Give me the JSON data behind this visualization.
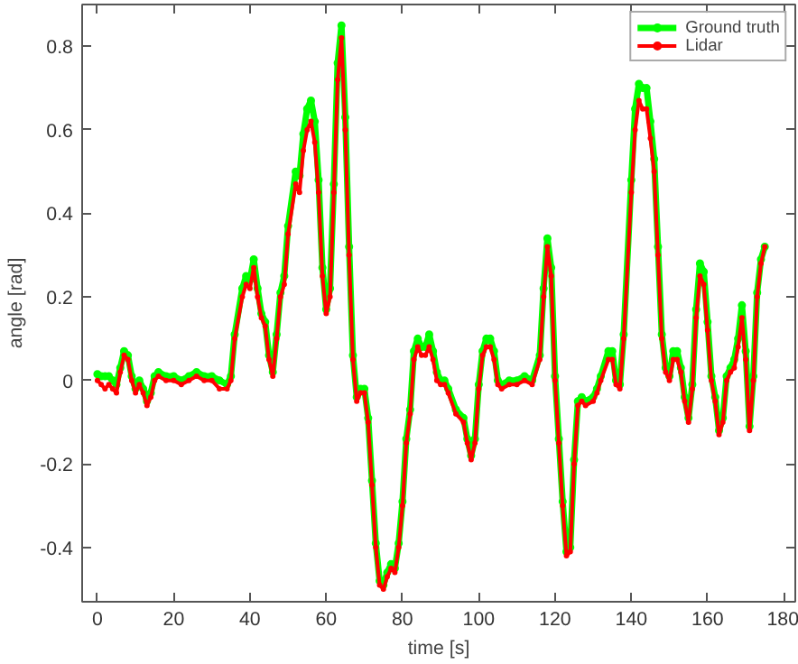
{
  "chart_data": {
    "type": "line",
    "xlabel": "time [s]",
    "ylabel": "angle [rad]",
    "xlim": [
      -4,
      183
    ],
    "ylim": [
      -0.53,
      0.9
    ],
    "xticks": [
      0,
      20,
      40,
      60,
      80,
      100,
      120,
      140,
      160,
      180
    ],
    "yticks": [
      -0.4,
      -0.2,
      0,
      0.2,
      0.4,
      0.6,
      0.8
    ],
    "grid": false,
    "legend": "top right",
    "marker": "circle",
    "line_style": "solid",
    "x": [
      0,
      1,
      2,
      3,
      4,
      5,
      6,
      7,
      8,
      9,
      10,
      11,
      12,
      13,
      14,
      15,
      16,
      18,
      20,
      22,
      24,
      26,
      28,
      30,
      32,
      34,
      35,
      36,
      38,
      39,
      40,
      41,
      42,
      43,
      44,
      45,
      46,
      47,
      48,
      49,
      50,
      52,
      53,
      54,
      55,
      56,
      57,
      58,
      59,
      60,
      61,
      62,
      63,
      64,
      65,
      66,
      67,
      68,
      69,
      70,
      71,
      72,
      73,
      74,
      75,
      76,
      77,
      78,
      79,
      80,
      81,
      82,
      83,
      84,
      85,
      86,
      87,
      88,
      89,
      90,
      91,
      92,
      94,
      96,
      97,
      98,
      99,
      100,
      101,
      102,
      103,
      104,
      105,
      106,
      108,
      110,
      112,
      114,
      116,
      117,
      118,
      119,
      120,
      121,
      122,
      123,
      124,
      125,
      126,
      127,
      128,
      130,
      131,
      132,
      134,
      135,
      136,
      137,
      138,
      140,
      141,
      142,
      143,
      144,
      145,
      146,
      147,
      148,
      149,
      150,
      151,
      152,
      153,
      154,
      155,
      156,
      157,
      158,
      159,
      160,
      161,
      162,
      163,
      164,
      165,
      166,
      167,
      168,
      169,
      170,
      171,
      172,
      173,
      174,
      175
    ],
    "series": [
      {
        "name": "Ground truth",
        "color": "#00ff00",
        "values": [
          0.015,
          0.01,
          0.01,
          0.01,
          0.0,
          -0.01,
          0.03,
          0.07,
          0.06,
          0.01,
          -0.02,
          0.0,
          -0.02,
          -0.05,
          -0.03,
          0.01,
          0.02,
          0.01,
          0.01,
          0.0,
          0.01,
          0.02,
          0.01,
          0.01,
          0.0,
          -0.01,
          0.01,
          0.11,
          0.22,
          0.25,
          0.24,
          0.29,
          0.22,
          0.16,
          0.14,
          0.06,
          0.02,
          0.11,
          0.21,
          0.25,
          0.37,
          0.5,
          0.49,
          0.59,
          0.65,
          0.67,
          0.62,
          0.48,
          0.27,
          0.17,
          0.22,
          0.47,
          0.76,
          0.85,
          0.63,
          0.32,
          0.06,
          -0.04,
          -0.02,
          -0.02,
          -0.09,
          -0.24,
          -0.39,
          -0.48,
          -0.49,
          -0.46,
          -0.44,
          -0.45,
          -0.39,
          -0.29,
          -0.14,
          -0.07,
          0.07,
          0.1,
          0.08,
          0.08,
          0.11,
          0.07,
          0.02,
          0.0,
          0.0,
          -0.02,
          -0.07,
          -0.09,
          -0.14,
          -0.18,
          -0.14,
          -0.01,
          0.07,
          0.1,
          0.1,
          0.07,
          0.0,
          -0.01,
          0.0,
          0.0,
          0.01,
          0.0,
          0.06,
          0.22,
          0.34,
          0.27,
          0.01,
          -0.14,
          -0.29,
          -0.41,
          -0.4,
          -0.19,
          -0.05,
          -0.04,
          -0.05,
          -0.04,
          -0.02,
          0.01,
          0.07,
          0.07,
          0.0,
          -0.01,
          0.11,
          0.48,
          0.65,
          0.71,
          0.7,
          0.7,
          0.62,
          0.53,
          0.32,
          0.11,
          0.03,
          0.01,
          0.07,
          0.07,
          0.03,
          -0.04,
          -0.09,
          -0.01,
          0.17,
          0.28,
          0.26,
          0.14,
          0.01,
          -0.04,
          -0.12,
          -0.09,
          0.01,
          0.03,
          0.05,
          0.1,
          0.18,
          0.07,
          -0.11,
          0.01,
          0.21,
          0.29,
          0.32
        ]
      },
      {
        "name": "Lidar",
        "color": "#ff0000",
        "values": [
          0.0,
          -0.01,
          -0.02,
          -0.01,
          -0.02,
          -0.03,
          0.02,
          0.06,
          0.05,
          0.0,
          -0.03,
          -0.01,
          -0.03,
          -0.06,
          -0.04,
          0.0,
          0.01,
          0.0,
          0.0,
          -0.01,
          0.0,
          0.01,
          0.0,
          0.0,
          -0.02,
          -0.02,
          0.0,
          0.1,
          0.2,
          0.23,
          0.22,
          0.27,
          0.2,
          0.15,
          0.13,
          0.05,
          0.01,
          0.1,
          0.2,
          0.23,
          0.35,
          0.47,
          0.45,
          0.55,
          0.6,
          0.62,
          0.57,
          0.45,
          0.25,
          0.16,
          0.2,
          0.45,
          0.72,
          0.82,
          0.6,
          0.3,
          0.05,
          -0.05,
          -0.03,
          -0.03,
          -0.1,
          -0.25,
          -0.4,
          -0.49,
          -0.5,
          -0.47,
          -0.45,
          -0.46,
          -0.4,
          -0.3,
          -0.15,
          -0.08,
          0.05,
          0.08,
          0.06,
          0.06,
          0.08,
          0.05,
          0.0,
          -0.01,
          -0.01,
          -0.03,
          -0.08,
          -0.1,
          -0.15,
          -0.19,
          -0.15,
          -0.02,
          0.06,
          0.08,
          0.08,
          0.05,
          -0.01,
          -0.02,
          -0.01,
          -0.01,
          0.0,
          -0.01,
          0.05,
          0.2,
          0.32,
          0.25,
          0.0,
          -0.15,
          -0.3,
          -0.42,
          -0.41,
          -0.2,
          -0.06,
          -0.05,
          -0.06,
          -0.05,
          -0.03,
          0.0,
          0.05,
          0.05,
          -0.01,
          -0.02,
          0.1,
          0.45,
          0.6,
          0.67,
          0.65,
          0.65,
          0.58,
          0.5,
          0.3,
          0.1,
          0.02,
          0.0,
          0.05,
          0.05,
          0.02,
          -0.05,
          -0.1,
          -0.02,
          0.15,
          0.25,
          0.23,
          0.12,
          0.0,
          -0.05,
          -0.13,
          -0.1,
          0.0,
          0.02,
          0.03,
          0.08,
          0.15,
          0.05,
          -0.12,
          0.0,
          0.2,
          0.28,
          0.32
        ]
      }
    ]
  }
}
